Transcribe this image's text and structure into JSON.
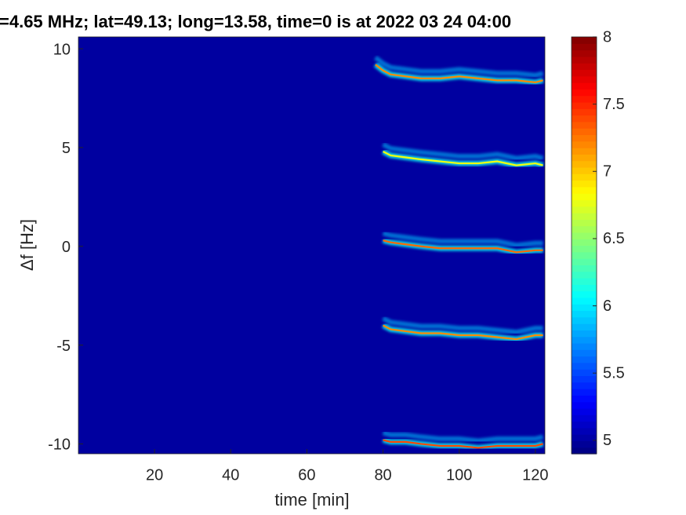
{
  "chart_data": {
    "type": "spectrogram",
    "title": "=4.65 MHz;  lat=49.13; long=13.58, time=0 is at 2022 03 24 04:00",
    "x_label": "time [min]",
    "y_label": "Δf [Hz]",
    "xlim": [
      0,
      122.5
    ],
    "ylim": [
      -10.5,
      10.6
    ],
    "xticks": [
      20,
      40,
      60,
      80,
      100,
      120
    ],
    "yticks": [
      10,
      5,
      0,
      -5,
      -10
    ],
    "clim": [
      4.9,
      8
    ],
    "cticks": [
      5,
      5.5,
      6,
      6.5,
      7,
      7.5,
      8
    ],
    "colormap": "jet",
    "background_value": 5.0,
    "series": [
      {
        "x": [
          78,
          80,
          82,
          86,
          90,
          95,
          100,
          105,
          110,
          115,
          120,
          122
        ],
        "values": [
          9.2,
          8.9,
          8.7,
          8.6,
          8.5,
          8.5,
          8.6,
          8.5,
          8.4,
          8.4,
          8.3,
          8.4
        ],
        "intensity": 7.2
      },
      {
        "x": [
          80,
          82,
          86,
          90,
          95,
          100,
          105,
          110,
          115,
          120,
          122
        ],
        "values": [
          4.8,
          4.6,
          4.5,
          4.4,
          4.3,
          4.2,
          4.2,
          4.3,
          4.1,
          4.2,
          4.1
        ],
        "intensity": 6.8
      },
      {
        "x": [
          80,
          82,
          86,
          90,
          95,
          100,
          105,
          110,
          115,
          120,
          122
        ],
        "values": [
          0.3,
          0.2,
          0.1,
          0.0,
          -0.1,
          -0.1,
          -0.1,
          -0.1,
          -0.3,
          -0.2,
          -0.2
        ],
        "intensity": 7.3
      },
      {
        "x": [
          80,
          82,
          86,
          90,
          95,
          100,
          105,
          110,
          115,
          120,
          122
        ],
        "values": [
          -4.0,
          -4.2,
          -4.3,
          -4.4,
          -4.4,
          -4.5,
          -4.5,
          -4.6,
          -4.7,
          -4.5,
          -4.5
        ],
        "intensity": 7.2
      },
      {
        "x": [
          80,
          82,
          86,
          90,
          95,
          100,
          105,
          110,
          115,
          120,
          122
        ],
        "values": [
          -9.8,
          -9.9,
          -9.9,
          -10.0,
          -10.1,
          -10.1,
          -10.2,
          -10.1,
          -10.1,
          -10.1,
          -10.0
        ],
        "intensity": 7.4
      }
    ]
  }
}
